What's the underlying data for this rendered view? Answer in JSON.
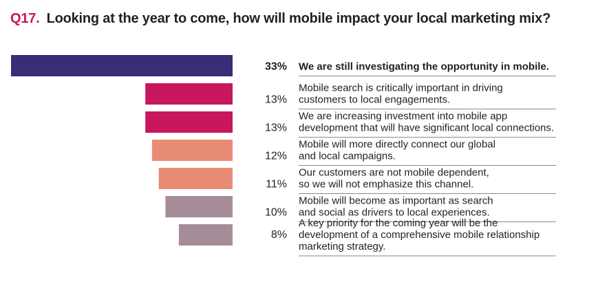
{
  "question": {
    "number": "Q17.",
    "text": "Looking at the year to come, how will mobile impact your local marketing mix?"
  },
  "colors": {
    "question_number": "#c8175d",
    "divider": "#8a8a8a"
  },
  "chart_data": {
    "type": "bar",
    "orientation": "horizontal",
    "bar_alignment": "right",
    "categories": [
      [
        "We are still investigating the opportunity in mobile."
      ],
      [
        "Mobile search is critically important in driving",
        "customers to local engagements."
      ],
      [
        "We are increasing investment into mobile app",
        "development that will have significant local connections."
      ],
      [
        "Mobile will more directly connect our global",
        "and local campaigns."
      ],
      [
        "Our customers are not mobile dependent,",
        "so we will not emphasize this channel."
      ],
      [
        "Mobile will become as important as search",
        "and social as drivers to local experiences."
      ],
      [
        "A key priority for the coming year will be the",
        "development of a comprehensive mobile relationship",
        "marketing strategy."
      ]
    ],
    "values": [
      33,
      13,
      13,
      12,
      11,
      10,
      8
    ],
    "value_labels": [
      "33%",
      "13%",
      "13%",
      "12%",
      "11%",
      "10%",
      "8%"
    ],
    "bar_colors": [
      "#3b2c77",
      "#c8175d",
      "#c8175d",
      "#e88c76",
      "#e88c76",
      "#a68c99",
      "#a68c99"
    ],
    "highlight_index": 0,
    "xlim": [
      0,
      33
    ]
  }
}
